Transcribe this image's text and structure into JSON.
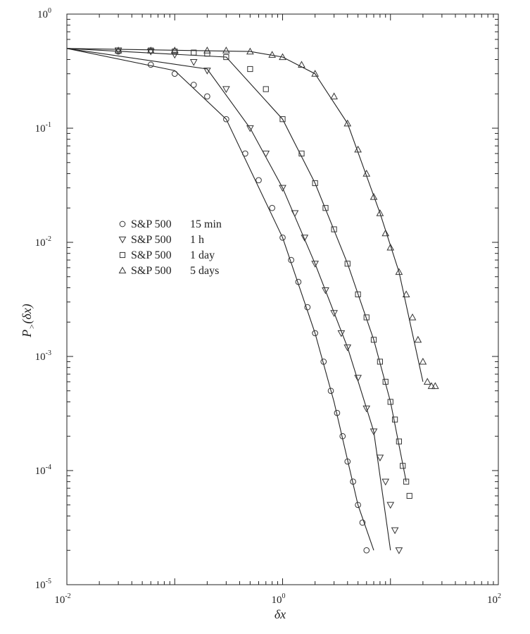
{
  "chart_data": {
    "type": "scatter",
    "title": "",
    "xlabel": "δx",
    "ylabel": "P_>(δx)",
    "x_scale": "log",
    "y_scale": "log",
    "xlim": [
      0.01,
      100
    ],
    "ylim": [
      1e-05,
      1
    ],
    "grid": false,
    "legend_position": "center-left",
    "x_ticks": [
      {
        "base": "10",
        "exp": "-2"
      },
      {
        "base": "10",
        "exp": "0"
      },
      {
        "base": "10",
        "exp": "2"
      }
    ],
    "y_ticks": [
      {
        "base": "10",
        "exp": "0"
      },
      {
        "base": "10",
        "exp": "-1"
      },
      {
        "base": "10",
        "exp": "-2"
      },
      {
        "base": "10",
        "exp": "-3"
      },
      {
        "base": "10",
        "exp": "-4"
      },
      {
        "base": "10",
        "exp": "-5"
      }
    ],
    "series": [
      {
        "name": "S&P 500",
        "period": "15 min",
        "marker": "circle",
        "x": [
          0.03,
          0.06,
          0.1,
          0.15,
          0.2,
          0.3,
          0.45,
          0.6,
          0.8,
          1.0,
          1.2,
          1.4,
          1.7,
          2.0,
          2.4,
          2.8,
          3.2,
          3.6,
          4.0,
          4.5,
          5.0,
          5.5,
          6.0
        ],
        "y": [
          0.47,
          0.36,
          0.3,
          0.24,
          0.19,
          0.12,
          0.06,
          0.035,
          0.02,
          0.011,
          0.007,
          0.0045,
          0.0027,
          0.0016,
          0.0009,
          0.0005,
          0.00032,
          0.0002,
          0.00012,
          8e-05,
          5e-05,
          3.5e-05,
          2e-05
        ]
      },
      {
        "name": "S&P 500",
        "period": "1 h",
        "marker": "triangle-down",
        "x": [
          0.03,
          0.06,
          0.1,
          0.15,
          0.2,
          0.3,
          0.5,
          0.7,
          1.0,
          1.3,
          1.6,
          2.0,
          2.5,
          3.0,
          3.5,
          4.0,
          5.0,
          6.0,
          7.0,
          8.0,
          9.0,
          10.0,
          11.0,
          12.0
        ],
        "y": [
          0.48,
          0.47,
          0.44,
          0.38,
          0.32,
          0.22,
          0.1,
          0.06,
          0.03,
          0.018,
          0.011,
          0.0065,
          0.0038,
          0.0024,
          0.0016,
          0.0012,
          0.00065,
          0.00035,
          0.00022,
          0.00013,
          8e-05,
          5e-05,
          3e-05,
          2e-05
        ]
      },
      {
        "name": "S&P 500",
        "period": "1 day",
        "marker": "square",
        "x": [
          0.03,
          0.06,
          0.1,
          0.15,
          0.2,
          0.3,
          0.5,
          0.7,
          1.0,
          1.5,
          2.0,
          2.5,
          3.0,
          4.0,
          5.0,
          6.0,
          7.0,
          8.0,
          9.0,
          10.0,
          11.0,
          12.0,
          13.0,
          14.0,
          15.0
        ],
        "y": [
          0.48,
          0.48,
          0.47,
          0.46,
          0.45,
          0.42,
          0.33,
          0.22,
          0.12,
          0.06,
          0.033,
          0.02,
          0.013,
          0.0065,
          0.0035,
          0.0022,
          0.0014,
          0.0009,
          0.0006,
          0.0004,
          0.00028,
          0.00018,
          0.00011,
          8e-05,
          6e-05
        ]
      },
      {
        "name": "S&P 500",
        "period": "5 days",
        "marker": "triangle-up",
        "x": [
          0.03,
          0.06,
          0.1,
          0.2,
          0.3,
          0.5,
          0.8,
          1.0,
          1.5,
          2.0,
          3.0,
          4.0,
          5.0,
          6.0,
          7.0,
          8.0,
          9.0,
          10.0,
          12.0,
          14.0,
          16.0,
          18.0,
          20.0,
          22.0,
          24.0,
          26.0
        ],
        "y": [
          0.48,
          0.48,
          0.48,
          0.48,
          0.48,
          0.47,
          0.44,
          0.42,
          0.36,
          0.3,
          0.19,
          0.11,
          0.065,
          0.04,
          0.025,
          0.018,
          0.012,
          0.009,
          0.0055,
          0.0035,
          0.0022,
          0.0014,
          0.0009,
          0.0006,
          0.00055,
          0.00055
        ]
      }
    ],
    "fit_lines": [
      {
        "series": "15 min",
        "x": [
          0.01,
          0.1,
          0.3,
          1.0,
          2.0,
          3.0,
          5.0,
          7.0
        ],
        "y": [
          0.5,
          0.32,
          0.12,
          0.011,
          0.0016,
          0.0004,
          5e-05,
          2e-05
        ]
      },
      {
        "series": "1 h",
        "x": [
          0.01,
          0.2,
          0.5,
          1.0,
          2.0,
          4.0,
          7.0,
          10.0
        ],
        "y": [
          0.5,
          0.33,
          0.1,
          0.03,
          0.0065,
          0.0012,
          0.00022,
          2e-05
        ]
      },
      {
        "series": "1 day",
        "x": [
          0.01,
          0.3,
          1.0,
          2.0,
          4.0,
          7.0,
          10.0,
          14.0
        ],
        "y": [
          0.5,
          0.42,
          0.12,
          0.033,
          0.0065,
          0.0014,
          0.0004,
          8e-05
        ]
      },
      {
        "series": "5 days",
        "x": [
          0.01,
          0.5,
          1.0,
          2.0,
          4.0,
          8.0,
          12.0,
          20.0
        ],
        "y": [
          0.5,
          0.47,
          0.42,
          0.3,
          0.11,
          0.018,
          0.0055,
          0.0006
        ]
      }
    ]
  }
}
